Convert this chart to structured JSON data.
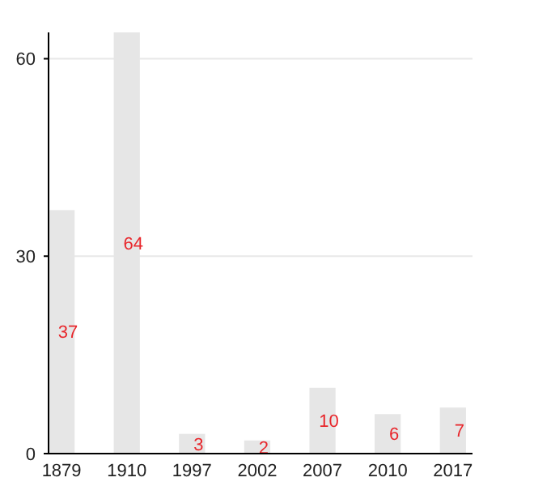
{
  "chart_data": {
    "type": "bar",
    "categories": [
      "1879",
      "1910",
      "1997",
      "2002",
      "2007",
      "2010",
      "2017"
    ],
    "values": [
      37,
      64,
      3,
      2,
      10,
      6,
      7
    ],
    "color": "#e6e6e6",
    "ylim": [
      0,
      64
    ],
    "yticks": [
      0,
      30,
      60
    ],
    "grid": "y",
    "data_labels": true
  }
}
